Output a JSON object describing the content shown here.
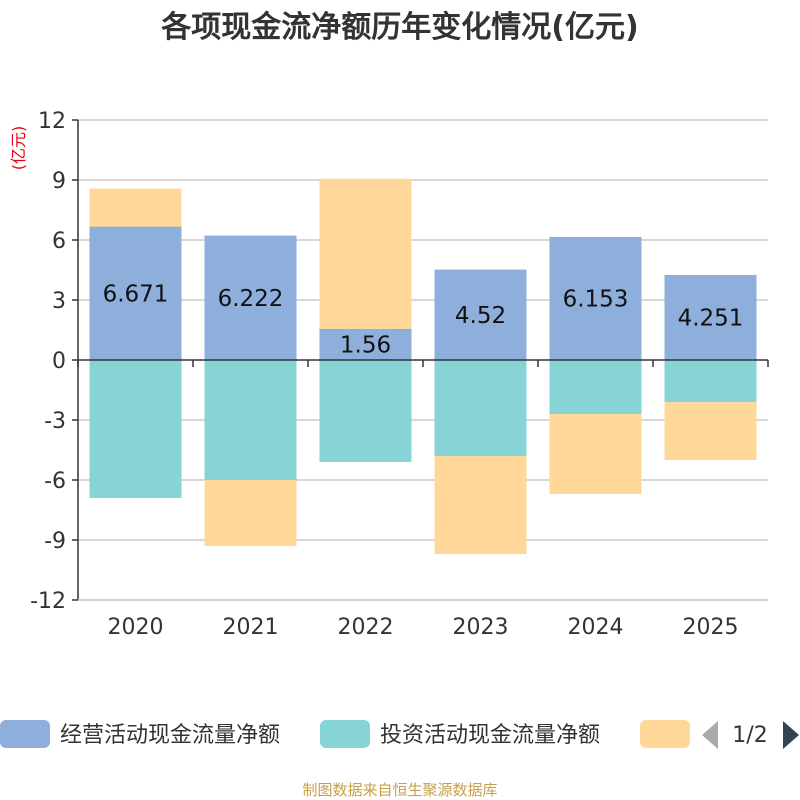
{
  "chart_data": {
    "type": "bar",
    "stacked": true,
    "title": "各项现金流净额历年变化情况(亿元)",
    "ylabel": "(亿元)",
    "categories": [
      "2020",
      "2021",
      "2022",
      "2023",
      "2024",
      "2025"
    ],
    "ylim": [
      -12,
      12
    ],
    "yticks": [
      12,
      9,
      6,
      3,
      0,
      -3,
      -6,
      -9,
      -12
    ],
    "series": [
      {
        "name": "经营活动现金流量净额",
        "color": "#8eaedb",
        "values": [
          6.671,
          6.222,
          1.56,
          4.52,
          6.153,
          4.251
        ]
      },
      {
        "name": "投资活动现金流量净额",
        "color": "#86d4d6",
        "values": [
          -6.9,
          -6.0,
          -5.1,
          -4.8,
          -2.7,
          -2.1
        ]
      },
      {
        "name": "",
        "color": "#ffd899",
        "values": [
          1.9,
          -3.3,
          7.5,
          -4.9,
          -4.0,
          -2.9
        ]
      }
    ],
    "data_labels": [
      "6.671",
      "6.222",
      "1.56",
      "4.52",
      "6.153",
      "4.251"
    ],
    "legend": {
      "position": "bottom",
      "page": "1/2"
    },
    "source": "制图数据来自恒生聚源数据库"
  }
}
